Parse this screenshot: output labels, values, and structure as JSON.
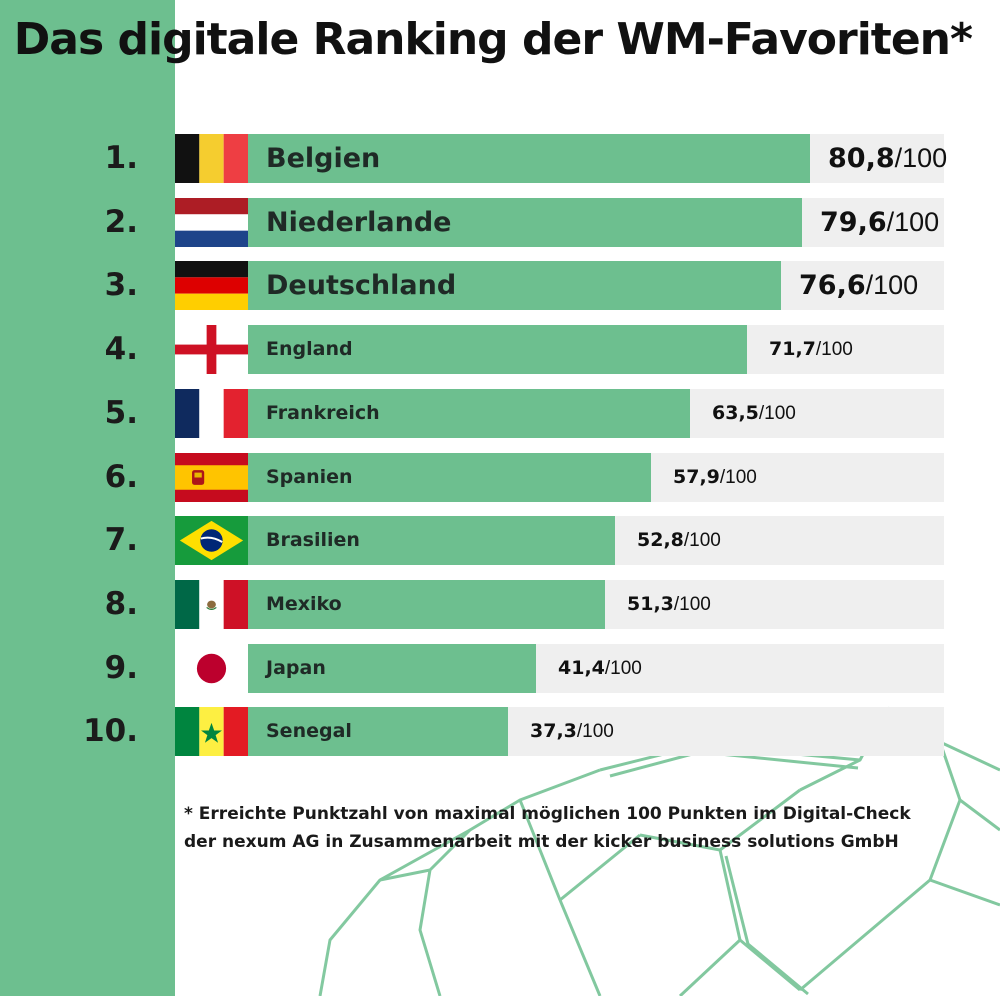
{
  "title": "Das digitale Ranking der WM-Favoriten*",
  "footnote_line1": "* Erreichte Punktzahl von maximal möglichen 100 Punkten im Digital-Check",
  "footnote_line2": "der nexum AG in Zusammenarbeit mit der kicker business solutions GmbH",
  "colors": {
    "bar": "#6dbf8f",
    "track": "#efefef",
    "band": "#6dbf8f",
    "text": "#111111"
  },
  "chart_data": {
    "type": "bar",
    "orientation": "horizontal",
    "categories": [
      "Belgien",
      "Niederlande",
      "Deutschland",
      "England",
      "Frankreich",
      "Spanien",
      "Brasilien",
      "Mexiko",
      "Japan",
      "Senegal"
    ],
    "ranks": [
      "1.",
      "2.",
      "3.",
      "4.",
      "5.",
      "6.",
      "7.",
      "8.",
      "9.",
      "10."
    ],
    "values": [
      80.8,
      79.6,
      76.6,
      71.7,
      63.5,
      57.9,
      52.8,
      51.3,
      41.4,
      37.3
    ],
    "value_labels": [
      "80,8",
      "79,6",
      "76,6",
      "71,7",
      "63,5",
      "57,9",
      "52,8",
      "51,3",
      "41,4",
      "37,3"
    ],
    "max_suffix": "/100",
    "xlim": [
      0,
      100
    ],
    "flags": [
      "belgium-flag-icon",
      "netherlands-flag-icon",
      "germany-flag-icon",
      "england-flag-icon",
      "france-flag-icon",
      "spain-flag-icon",
      "brazil-flag-icon",
      "mexico-flag-icon",
      "japan-flag-icon",
      "senegal-flag-icon"
    ],
    "grid": false,
    "legend": "none"
  }
}
